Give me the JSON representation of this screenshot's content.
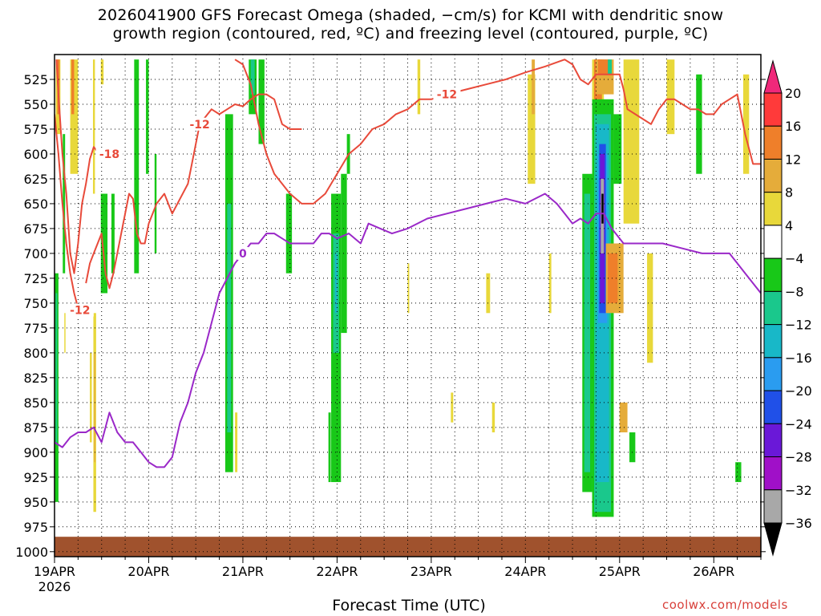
{
  "title_line1": "2026041900 GFS Forecast Omega (shaded, −cm/s) for KCMI with dendritic snow",
  "title_line2": "growth region (contoured, red, ºC) and freezing level (contoured, purple, ºC)",
  "credit": "coolwx.com/models",
  "chart_data": {
    "type": "heatmap",
    "title": "2026041900 GFS Forecast Omega (shaded, −cm/s) for KCMI with dendritic snow growth region (contoured, red, ºC) and freezing level (contoured, purple, ºC)",
    "xlabel": "Forecast Time (UTC)",
    "ylabel": "",
    "x_ticks": [
      "19APR",
      "20APR",
      "21APR",
      "22APR",
      "23APR",
      "24APR",
      "25APR",
      "26APR"
    ],
    "x_year_label": "2026",
    "y_ticks": [
      525,
      550,
      575,
      600,
      625,
      650,
      675,
      700,
      725,
      750,
      775,
      800,
      825,
      850,
      875,
      900,
      925,
      950,
      975,
      1000
    ],
    "ylim_hPa": [
      500,
      1005
    ],
    "xlim_hours": [
      0,
      180
    ],
    "grid": true,
    "colorbar": {
      "levels": [
        20,
        16,
        12,
        8,
        4,
        -4,
        -8,
        -12,
        -16,
        -20,
        -24,
        -28,
        -32,
        -36
      ],
      "bands": [
        {
          "from": 16,
          "to": 20,
          "color": "#ff3a3a"
        },
        {
          "from": 12,
          "to": 16,
          "color": "#ef7f2a"
        },
        {
          "from": 8,
          "to": 12,
          "color": "#e5ac3a"
        },
        {
          "from": 4,
          "to": 8,
          "color": "#e8d83a"
        },
        {
          "from": -4,
          "to": 4,
          "color": "#ffffff"
        },
        {
          "from": -8,
          "to": -4,
          "color": "#18c818"
        },
        {
          "from": -12,
          "to": -8,
          "color": "#1ac88c"
        },
        {
          "from": -16,
          "to": -12,
          "color": "#18b8c8"
        },
        {
          "from": -20,
          "to": -16,
          "color": "#2a9cf0"
        },
        {
          "from": -24,
          "to": -20,
          "color": "#2050e8"
        },
        {
          "from": -28,
          "to": -24,
          "color": "#6a18d8"
        },
        {
          "from": -32,
          "to": -28,
          "color": "#a010c8"
        },
        {
          "from": -36,
          "to": -32,
          "color": "#a8a8a8"
        }
      ],
      "top_color": "#f0287a",
      "bottom_color": "#000000"
    },
    "shading_cells": [
      {
        "x": [
          0.3,
          1.5
        ],
        "p": [
          505,
          580
        ],
        "color": "#e8d83a"
      },
      {
        "x": [
          0.7,
          1.3
        ],
        "p": [
          505,
          560
        ],
        "color": "#ef7f2a"
      },
      {
        "x": [
          0.0,
          1.0
        ],
        "p": [
          720,
          950
        ],
        "color": "#18c818"
      },
      {
        "x": [
          0.3,
          0.7
        ],
        "p": [
          740,
          890
        ],
        "color": "#1ac88c"
      },
      {
        "x": [
          2.1,
          2.7
        ],
        "p": [
          580,
          720
        ],
        "color": "#18c818"
      },
      {
        "x": [
          2.5,
          2.8
        ],
        "p": [
          760,
          800
        ],
        "color": "#e8d83a"
      },
      {
        "x": [
          4.0,
          6.0
        ],
        "p": [
          505,
          620
        ],
        "color": "#e8d83a"
      },
      {
        "x": [
          4.3,
          5.0
        ],
        "p": [
          505,
          560
        ],
        "color": "#ef7f2a"
      },
      {
        "x": [
          9.8,
          10.3
        ],
        "p": [
          505,
          640
        ],
        "color": "#e8d83a"
      },
      {
        "x": [
          9.9,
          10.6
        ],
        "p": [
          760,
          960
        ],
        "color": "#e8d83a"
      },
      {
        "x": [
          10.1,
          10.4
        ],
        "p": [
          800,
          910
        ],
        "color": "#e5ac3a"
      },
      {
        "x": [
          9.0,
          9.5
        ],
        "p": [
          800,
          890
        ],
        "color": "#e8d83a"
      },
      {
        "x": [
          11.8,
          13.5
        ],
        "p": [
          640,
          740
        ],
        "color": "#18c818"
      },
      {
        "x": [
          14.5,
          15.3
        ],
        "p": [
          640,
          720
        ],
        "color": "#18c818"
      },
      {
        "x": [
          11.8,
          12.5
        ],
        "p": [
          505,
          530
        ],
        "color": "#e8d83a"
      },
      {
        "x": [
          20.3,
          21.5
        ],
        "p": [
          505,
          720
        ],
        "color": "#18c818"
      },
      {
        "x": [
          23.3,
          24.0
        ],
        "p": [
          505,
          620
        ],
        "color": "#18c818"
      },
      {
        "x": [
          25.5,
          26.0
        ],
        "p": [
          600,
          700
        ],
        "color": "#18c818"
      },
      {
        "x": [
          43.5,
          45.5
        ],
        "p": [
          560,
          920
        ],
        "color": "#18c818"
      },
      {
        "x": [
          44.0,
          45.0
        ],
        "p": [
          650,
          880
        ],
        "color": "#1ac88c"
      },
      {
        "x": [
          46.0,
          46.6
        ],
        "p": [
          860,
          920
        ],
        "color": "#e8d83a"
      },
      {
        "x": [
          49.5,
          51.5
        ],
        "p": [
          505,
          560
        ],
        "color": "#18c818"
      },
      {
        "x": [
          50.0,
          51.0
        ],
        "p": [
          505,
          540
        ],
        "color": "#1ac88c"
      },
      {
        "x": [
          52.0,
          53.5
        ],
        "p": [
          505,
          590
        ],
        "color": "#18c818"
      },
      {
        "x": [
          59.0,
          60.5
        ],
        "p": [
          640,
          720
        ],
        "color": "#18c818"
      },
      {
        "x": [
          70.5,
          73.0
        ],
        "p": [
          640,
          930
        ],
        "color": "#18c818"
      },
      {
        "x": [
          71.0,
          72.5
        ],
        "p": [
          680,
          800
        ],
        "color": "#1ac88c"
      },
      {
        "x": [
          71.5,
          72.0
        ],
        "p": [
          700,
          760
        ],
        "color": "#18b8c8"
      },
      {
        "x": [
          69.8,
          70.4
        ],
        "p": [
          860,
          930
        ],
        "color": "#18c818"
      },
      {
        "x": [
          73.0,
          74.5
        ],
        "p": [
          620,
          780
        ],
        "color": "#18c818"
      },
      {
        "x": [
          74.5,
          75.3
        ],
        "p": [
          580,
          620
        ],
        "color": "#18c818"
      },
      {
        "x": [
          92.5,
          93.2
        ],
        "p": [
          505,
          560
        ],
        "color": "#e8d83a"
      },
      {
        "x": [
          90.0,
          90.4
        ],
        "p": [
          710,
          760
        ],
        "color": "#e8d83a"
      },
      {
        "x": [
          101.0,
          101.6
        ],
        "p": [
          840,
          870
        ],
        "color": "#e8d83a"
      },
      {
        "x": [
          111.5,
          112.2
        ],
        "p": [
          850,
          880
        ],
        "color": "#e8d83a"
      },
      {
        "x": [
          120.6,
          122.5
        ],
        "p": [
          520,
          630
        ],
        "color": "#e8d83a"
      },
      {
        "x": [
          121.6,
          122.4
        ],
        "p": [
          505,
          560
        ],
        "color": "#e5ac3a"
      },
      {
        "x": [
          110.0,
          111.0
        ],
        "p": [
          720,
          760
        ],
        "color": "#e8d83a"
      },
      {
        "x": [
          126.0,
          126.6
        ],
        "p": [
          700,
          760
        ],
        "color": "#e8d83a"
      },
      {
        "x": [
          134.5,
          137.0
        ],
        "p": [
          620,
          940
        ],
        "color": "#18c818"
      },
      {
        "x": [
          135.0,
          136.5
        ],
        "p": [
          640,
          920
        ],
        "color": "#1ac88c"
      },
      {
        "x": [
          137.0,
          140.0
        ],
        "p": [
          505,
          580
        ],
        "color": "#e8d83a"
      },
      {
        "x": [
          137.5,
          139.5
        ],
        "p": [
          505,
          560
        ],
        "color": "#ef7f2a"
      },
      {
        "x": [
          138.0,
          139.0
        ],
        "p": [
          505,
          540
        ],
        "color": "#ff3a3a"
      },
      {
        "x": [
          137.0,
          142.5
        ],
        "p": [
          545,
          965
        ],
        "color": "#18c818"
      },
      {
        "x": [
          137.5,
          141.8
        ],
        "p": [
          560,
          960
        ],
        "color": "#1ac88c"
      },
      {
        "x": [
          138.0,
          141.3
        ],
        "p": [
          570,
          930
        ],
        "color": "#18b8c8"
      },
      {
        "x": [
          138.5,
          140.8
        ],
        "p": [
          600,
          770
        ],
        "color": "#2a9cf0"
      },
      {
        "x": [
          138.8,
          140.5
        ],
        "p": [
          590,
          760
        ],
        "color": "#2050e8"
      },
      {
        "x": [
          139.0,
          140.2
        ],
        "p": [
          600,
          750
        ],
        "color": "#6a18d8"
      },
      {
        "x": [
          139.2,
          140.0
        ],
        "p": [
          625,
          700
        ],
        "color": "#a8a8a8"
      },
      {
        "x": [
          139.4,
          139.9
        ],
        "p": [
          640,
          670
        ],
        "color": "#000000"
      },
      {
        "x": [
          138.0,
          142.5
        ],
        "p": [
          505,
          540
        ],
        "color": "#e5ac3a"
      },
      {
        "x": [
          138.5,
          141.5
        ],
        "p": [
          505,
          520
        ],
        "color": "#ef7f2a"
      },
      {
        "x": [
          142.5,
          144.5
        ],
        "p": [
          560,
          630
        ],
        "color": "#18c818"
      },
      {
        "x": [
          140.5,
          145.0
        ],
        "p": [
          690,
          760
        ],
        "color": "#e5ac3a"
      },
      {
        "x": [
          141.0,
          143.5
        ],
        "p": [
          700,
          750
        ],
        "color": "#ef7f2a"
      },
      {
        "x": [
          145.0,
          149.0
        ],
        "p": [
          505,
          670
        ],
        "color": "#e8d83a"
      },
      {
        "x": [
          144.0,
          146.0
        ],
        "p": [
          850,
          880
        ],
        "color": "#e5ac3a"
      },
      {
        "x": [
          146.5,
          148.0
        ],
        "p": [
          880,
          910
        ],
        "color": "#18c818"
      },
      {
        "x": [
          151.0,
          152.5
        ],
        "p": [
          700,
          810
        ],
        "color": "#e8d83a"
      },
      {
        "x": [
          141.0,
          142.0
        ],
        "p": [
          505,
          520
        ],
        "color": "#1ac88c"
      },
      {
        "x": [
          156.0,
          158.0
        ],
        "p": [
          505,
          580
        ],
        "color": "#e8d83a"
      },
      {
        "x": [
          163.5,
          165.0
        ],
        "p": [
          520,
          620
        ],
        "color": "#18c818"
      },
      {
        "x": [
          173.5,
          175.0
        ],
        "p": [
          910,
          930
        ],
        "color": "#18c818"
      },
      {
        "x": [
          175.5,
          177.0
        ],
        "p": [
          520,
          620
        ],
        "color": "#e8d83a"
      }
    ],
    "series": [
      {
        "name": "dendritic snow growth region (contoured, red, ºC)",
        "label": "-18",
        "color": "#e84a3a",
        "x": [
          0.5,
          1,
          2,
          3,
          4,
          5,
          6,
          7,
          8,
          9,
          10,
          11,
          12,
          13,
          14,
          15,
          17
        ],
        "p": [
          505,
          540,
          600,
          640,
          700,
          720,
          690,
          650,
          630,
          605,
          593,
          598,
          600,
          602,
          600,
          598,
          603
        ]
      },
      {
        "name": "",
        "label": "-12",
        "color": "#e84a3a",
        "x": [
          0,
          1,
          2,
          3,
          4,
          5,
          6,
          6.5
        ],
        "p": [
          560,
          600,
          650,
          690,
          720,
          740,
          755,
          757
        ]
      },
      {
        "name": "",
        "label": "-12",
        "color": "#e84a3a",
        "x": [
          8,
          9,
          10,
          11,
          12,
          13,
          14,
          15,
          16,
          17,
          18,
          19,
          20,
          21,
          22,
          23,
          24,
          26,
          28,
          30,
          32,
          34,
          36,
          37,
          39,
          40,
          42,
          44,
          46,
          48,
          50,
          52,
          54,
          56,
          58,
          60,
          63
        ],
        "p": [
          730,
          710,
          700,
          690,
          680,
          720,
          735,
          720,
          700,
          680,
          660,
          640,
          645,
          680,
          690,
          690,
          670,
          650,
          640,
          660,
          645,
          630,
          590,
          570,
          560,
          555,
          560,
          555,
          550,
          552,
          545,
          540,
          540,
          545,
          570,
          575,
          575
        ]
      },
      {
        "name": "",
        "label": "-12",
        "color": "#e84a3a",
        "x": [
          46,
          48,
          50,
          52,
          54,
          56,
          58,
          60,
          63,
          66,
          69,
          72,
          75,
          78,
          81,
          84,
          87,
          90,
          93,
          96,
          100,
          105,
          110,
          115,
          120,
          125,
          130,
          132,
          134,
          136,
          138,
          140,
          142,
          144,
          145,
          146,
          148,
          150,
          152,
          154,
          156,
          158,
          160,
          162,
          164,
          166,
          168,
          170,
          172,
          174,
          175,
          176,
          177,
          178,
          180
        ],
        "p": [
          505,
          510,
          530,
          570,
          600,
          620,
          630,
          640,
          650,
          650,
          640,
          620,
          600,
          590,
          575,
          570,
          560,
          555,
          545,
          545,
          540,
          535,
          530,
          525,
          518,
          512,
          505,
          510,
          525,
          530,
          520,
          520,
          520,
          520,
          535,
          555,
          560,
          565,
          570,
          555,
          545,
          545,
          550,
          555,
          555,
          560,
          560,
          550,
          545,
          540,
          560,
          580,
          595,
          610,
          610
        ]
      },
      {
        "name": "freezing level (contoured, purple, ºC)",
        "label": "0",
        "color": "#9a28c8",
        "x": [
          0,
          2,
          4,
          6,
          8,
          10,
          12,
          14,
          16,
          18,
          20,
          22,
          24,
          26,
          28,
          30,
          32,
          34,
          36,
          38,
          40,
          42,
          44,
          46,
          48,
          50,
          52,
          54,
          56,
          58,
          60,
          62,
          64,
          66,
          68,
          70,
          72,
          75,
          78,
          80,
          83,
          86,
          90,
          95,
          100,
          105,
          110,
          115,
          120,
          125,
          128,
          130,
          132,
          134,
          136,
          138,
          140,
          142,
          145,
          150,
          155,
          160,
          165,
          170,
          172,
          174,
          176,
          178,
          180
        ],
        "p": [
          890,
          895,
          885,
          880,
          880,
          875,
          890,
          860,
          880,
          890,
          890,
          900,
          910,
          915,
          915,
          905,
          870,
          850,
          820,
          800,
          770,
          740,
          725,
          710,
          700,
          690,
          690,
          680,
          680,
          685,
          690,
          690,
          690,
          690,
          680,
          680,
          685,
          680,
          690,
          670,
          675,
          680,
          675,
          665,
          660,
          655,
          650,
          645,
          650,
          640,
          650,
          660,
          670,
          665,
          670,
          660,
          660,
          675,
          690,
          690,
          690,
          695,
          700,
          700,
          700,
          710,
          720,
          730,
          740
        ]
      }
    ],
    "terrain": {
      "color": "#a0522d",
      "p_top_min": 985,
      "p_top_max": 990
    }
  }
}
